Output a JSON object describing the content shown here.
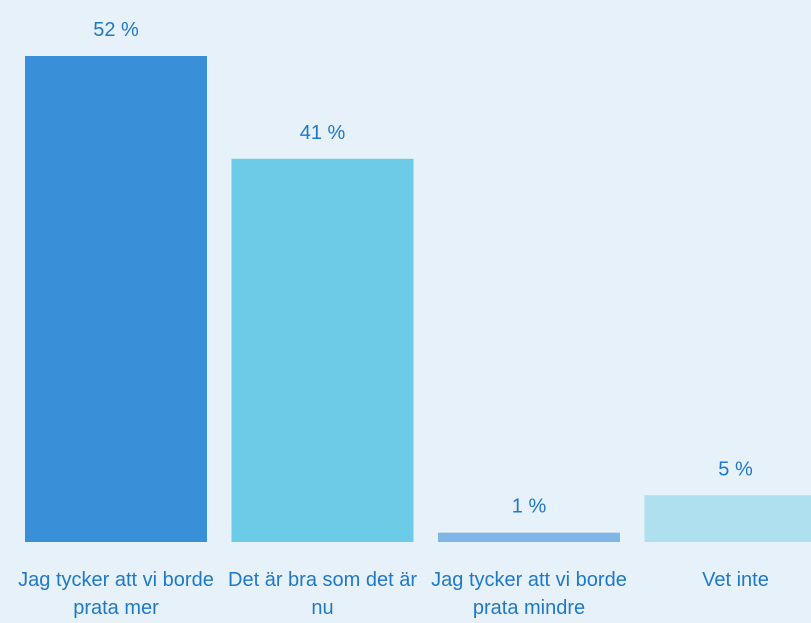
{
  "chart_data": {
    "type": "bar",
    "categories": [
      "Jag tycker att vi borde prata mer",
      "Det är bra som det är nu",
      "Jag tycker att vi borde prata mindre",
      "Vet inte"
    ],
    "values": [
      52,
      41,
      1,
      5
    ],
    "value_labels": [
      "52 %",
      "41 %",
      "1 %",
      "5 %"
    ],
    "colors": [
      "#3a8fd9",
      "#6ccbe6",
      "#7fb6e6",
      "#aee0ef"
    ]
  }
}
